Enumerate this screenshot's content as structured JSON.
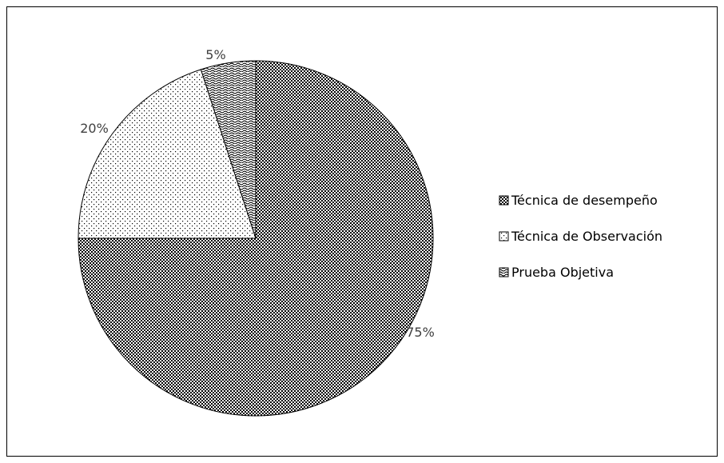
{
  "chart_data": {
    "type": "pie",
    "title": "",
    "series": [
      {
        "name": "Técnica de desempeño",
        "value": 75,
        "label": "75%",
        "pattern": "dense-dots"
      },
      {
        "name": "Técnica de Observación",
        "value": 20,
        "label": "20%",
        "pattern": "sparse-dots"
      },
      {
        "name": "Prueba Objetiva",
        "value": 5,
        "label": "5%",
        "pattern": "waves"
      }
    ],
    "start_angle_deg": 0,
    "direction": "clockwise",
    "legend_position": "right",
    "colors": {
      "outline": "#000000",
      "label": "#404040",
      "fill": "#ffffff"
    }
  }
}
